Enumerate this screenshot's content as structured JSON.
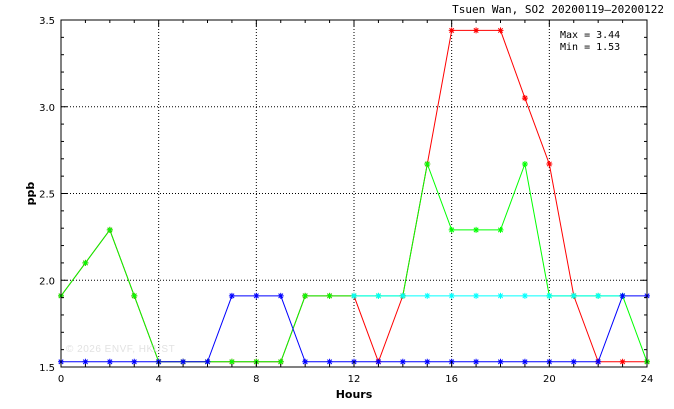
{
  "chart_data": {
    "type": "line",
    "title": "Tsuen Wan, SO2 20200119—20200122",
    "xlabel": "Hours",
    "ylabel": "ppb",
    "xlim": [
      0,
      24
    ],
    "ylim": [
      1.5,
      3.5
    ],
    "x_ticks": [
      0,
      4,
      8,
      12,
      16,
      20,
      24
    ],
    "y_ticks": [
      1.5,
      2.0,
      2.5,
      3.0,
      3.5
    ],
    "y_tick_labels": [
      "1.5",
      "2.0",
      "2.5",
      "3.0",
      "3.5"
    ],
    "grid": true,
    "annotations": {
      "max": "Max = 3.44",
      "min": "Min = 1.53"
    },
    "watermark": "© 2026 ENVF, HKUST",
    "series": [
      {
        "color": "#ff0000",
        "x": [
          0,
          1,
          2,
          3,
          4,
          5,
          6,
          7,
          8,
          9,
          10,
          11,
          12,
          13,
          14,
          15,
          16,
          17,
          18,
          19,
          20,
          21,
          22,
          23,
          24
        ],
        "values": [
          1.91,
          2.1,
          2.29,
          1.91,
          1.53,
          1.53,
          1.53,
          1.53,
          1.53,
          1.53,
          1.91,
          1.91,
          1.91,
          1.53,
          1.91,
          2.67,
          3.44,
          3.44,
          3.44,
          3.05,
          2.67,
          1.91,
          1.53,
          1.53,
          1.53
        ]
      },
      {
        "color": "#00ff00",
        "x": [
          0,
          1,
          2,
          3,
          4,
          5,
          6,
          7,
          8,
          9,
          10,
          11,
          12,
          13,
          14,
          15,
          16,
          17,
          18,
          19,
          20,
          21,
          22,
          23,
          24
        ],
        "values": [
          1.91,
          2.1,
          2.29,
          1.91,
          1.53,
          1.53,
          1.53,
          1.53,
          1.53,
          1.53,
          1.91,
          1.91,
          1.91,
          1.91,
          1.91,
          2.67,
          2.29,
          2.29,
          2.29,
          2.67,
          1.91,
          1.91,
          1.91,
          1.91,
          1.53
        ]
      },
      {
        "color": "#00ffff",
        "x": [
          12,
          13,
          14,
          15,
          16,
          17,
          18,
          19,
          20,
          21,
          22,
          23
        ],
        "values": [
          1.91,
          1.91,
          1.91,
          1.91,
          1.91,
          1.91,
          1.91,
          1.91,
          1.91,
          1.91,
          1.91,
          1.91
        ]
      },
      {
        "color": "#0000ff",
        "x": [
          0,
          1,
          2,
          3,
          4,
          5,
          6,
          7,
          8,
          9,
          10,
          11,
          12,
          13,
          14,
          15,
          16,
          17,
          18,
          19,
          20,
          21,
          22,
          23,
          24
        ],
        "values": [
          1.53,
          1.53,
          1.53,
          1.53,
          1.53,
          1.53,
          1.53,
          1.91,
          1.91,
          1.91,
          1.53,
          1.53,
          1.53,
          1.53,
          1.53,
          1.53,
          1.53,
          1.53,
          1.53,
          1.53,
          1.53,
          1.53,
          1.53,
          1.91,
          1.91
        ]
      }
    ]
  }
}
